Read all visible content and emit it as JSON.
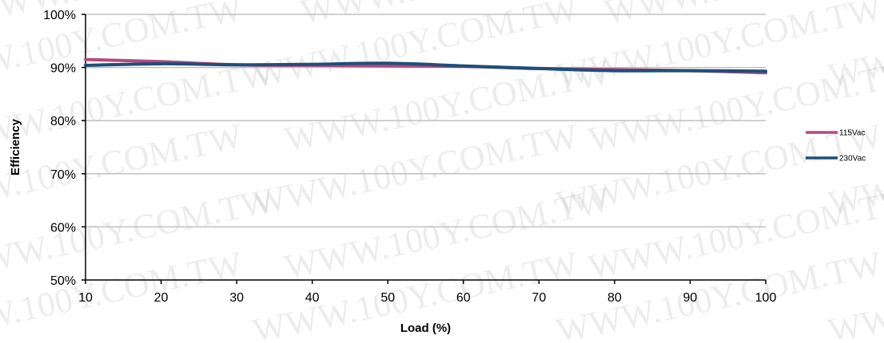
{
  "chart_data": {
    "type": "line",
    "title": "",
    "xlabel": "Load (%)",
    "ylabel": "Efficiency",
    "xlim": [
      10,
      100
    ],
    "ylim": [
      50,
      100
    ],
    "x_ticks": [
      10,
      20,
      30,
      40,
      50,
      60,
      70,
      80,
      90,
      100
    ],
    "y_ticks": [
      50,
      60,
      70,
      80,
      90,
      100
    ],
    "y_tick_format": "percent",
    "grid": "horizontal",
    "legend_position": "right",
    "series": [
      {
        "name": "115Vac",
        "color": "#b5497e",
        "x": [
          10,
          20,
          30,
          40,
          50,
          60,
          70,
          80,
          90,
          100
        ],
        "y": [
          91.5,
          91.1,
          90.5,
          90.4,
          90.3,
          90.2,
          89.8,
          89.6,
          89.4,
          89.0
        ]
      },
      {
        "name": "230Vac",
        "color": "#1f4e79",
        "x": [
          10,
          20,
          30,
          40,
          50,
          60,
          70,
          80,
          90,
          100
        ],
        "y": [
          90.4,
          90.7,
          90.5,
          90.6,
          90.8,
          90.3,
          89.8,
          89.4,
          89.4,
          89.3
        ]
      }
    ],
    "watermark": "WWW.100Y.COM.TW"
  }
}
